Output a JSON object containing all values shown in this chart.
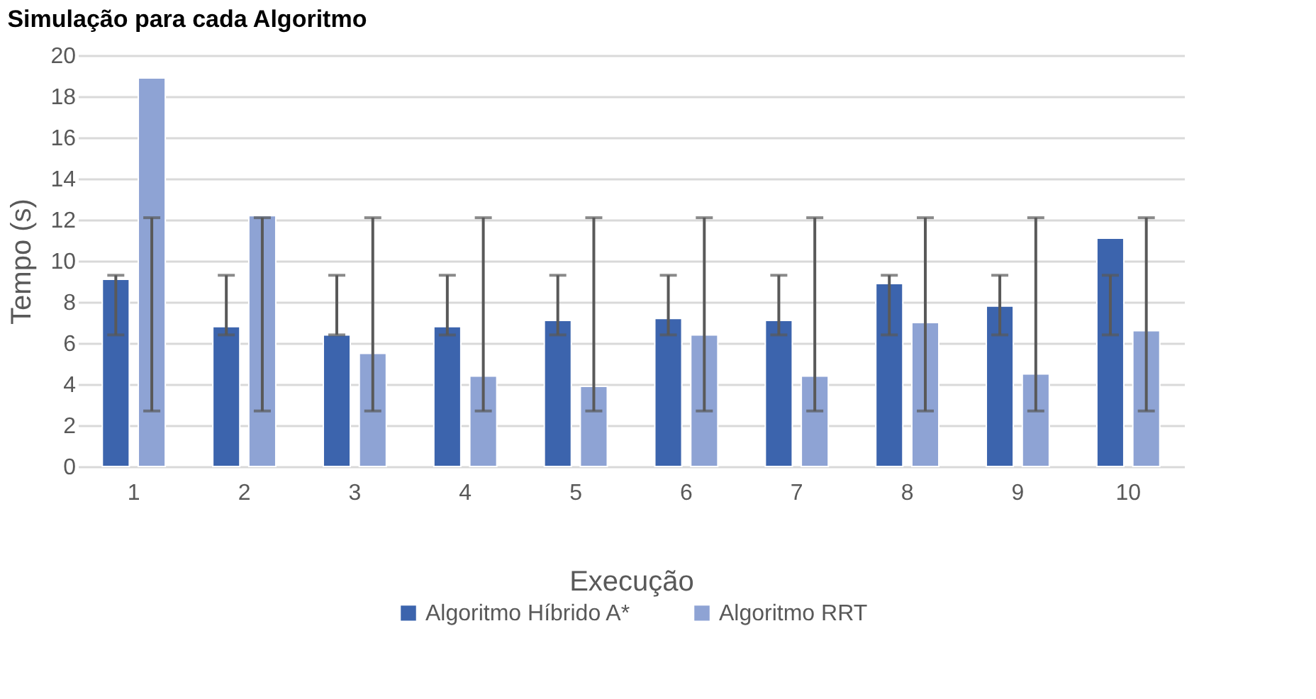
{
  "chart_data": {
    "type": "bar",
    "title": "Simulação para cada Algoritmo",
    "xlabel": "Execução",
    "ylabel": "Tempo (s)",
    "categories": [
      "1",
      "2",
      "3",
      "4",
      "5",
      "6",
      "7",
      "8",
      "9",
      "10"
    ],
    "series": [
      {
        "name": "Algoritmo Híbrido A*",
        "color": "#3c64ad",
        "values": [
          9.1,
          6.8,
          6.4,
          6.8,
          7.1,
          7.2,
          7.1,
          8.9,
          7.8,
          11.1
        ],
        "errors": [
          [
            6.4,
            9.3
          ],
          [
            6.4,
            9.3
          ],
          [
            6.4,
            9.3
          ],
          [
            6.4,
            9.3
          ],
          [
            6.4,
            9.3
          ],
          [
            6.4,
            9.3
          ],
          [
            6.4,
            9.3
          ],
          [
            6.4,
            9.3
          ],
          [
            6.4,
            9.3
          ],
          [
            6.4,
            9.3
          ]
        ]
      },
      {
        "name": "Algoritmo RRT",
        "color": "#8ea3d4",
        "values": [
          18.9,
          12.2,
          5.5,
          4.4,
          3.9,
          6.4,
          4.4,
          7.0,
          4.5,
          6.6
        ],
        "errors": [
          [
            2.7,
            12.1
          ],
          [
            2.7,
            12.1
          ],
          [
            2.7,
            12.1
          ],
          [
            2.7,
            12.1
          ],
          [
            2.7,
            12.1
          ],
          [
            2.7,
            12.1
          ],
          [
            2.7,
            12.1
          ],
          [
            2.7,
            12.1
          ],
          [
            2.7,
            12.1
          ],
          [
            2.7,
            12.1
          ]
        ]
      }
    ],
    "ylim": [
      0,
      20
    ],
    "yticks": [
      0,
      2,
      4,
      6,
      8,
      10,
      12,
      14,
      16,
      18,
      20
    ],
    "grid": "y",
    "legend": "bottom"
  }
}
